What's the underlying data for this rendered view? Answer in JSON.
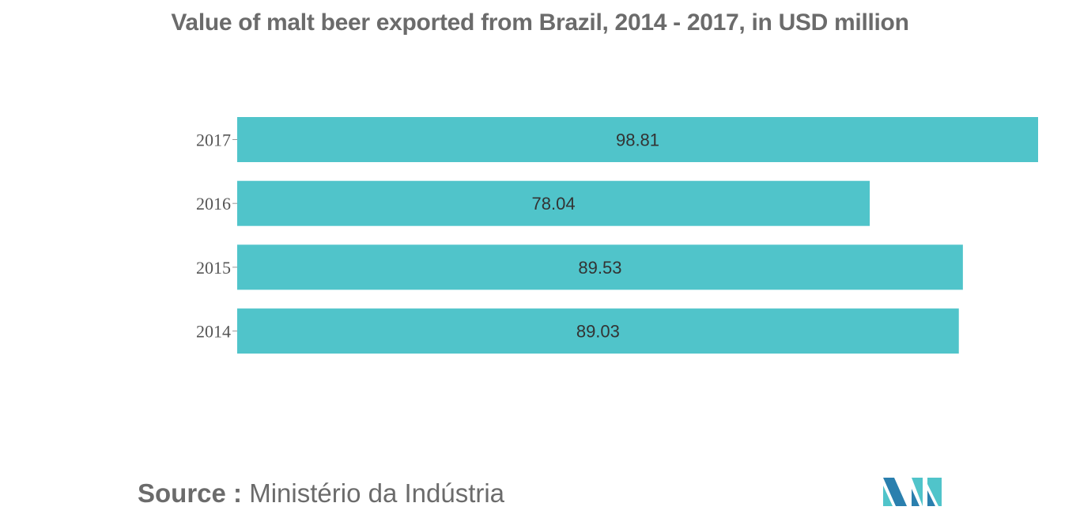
{
  "colors": {
    "bar": "#50c4ca",
    "text": "#6b6b6b",
    "label": "#333333",
    "logo_dark": "#2a7fae",
    "logo_light": "#50c4ca"
  },
  "chart_data": {
    "type": "bar",
    "orientation": "horizontal",
    "title": "Value of malt beer exported from Brazil, 2014 - 2017, in USD million",
    "categories": [
      "2017",
      "2016",
      "2015",
      "2014"
    ],
    "values": [
      98.81,
      78.04,
      89.53,
      89.03
    ],
    "value_labels": [
      "98.81",
      "78.04",
      "89.53",
      "89.03"
    ],
    "xlabel": "",
    "ylabel": "",
    "xlim": [
      0,
      98.81
    ],
    "grid": false,
    "legend": "none"
  },
  "source": {
    "label": "Source :",
    "text": "Ministério da Indústria"
  },
  "logo": {
    "icon": "mordor-intelligence-logo-icon"
  }
}
